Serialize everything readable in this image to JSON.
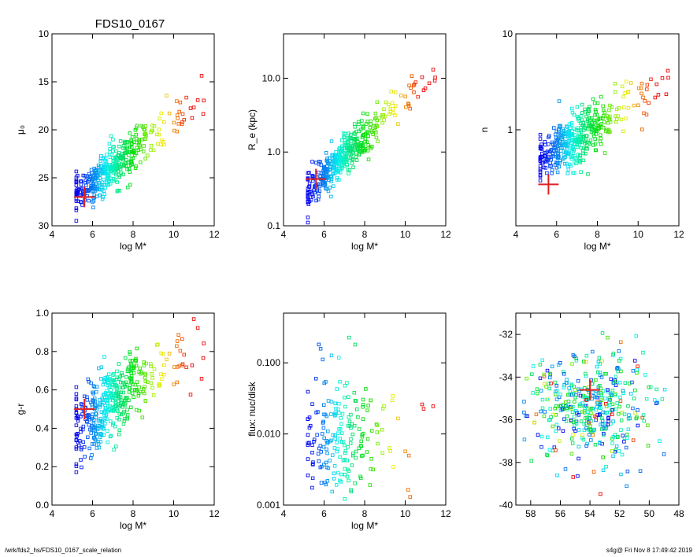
{
  "title": "FDS10_0167",
  "footer_left": "/wrk/fds2_hs/FDS10_0167_scale_relation",
  "footer_right": "s4g@  Fri Nov  8 17:49:42 2019",
  "colors": {
    "marker_main": "#e02020",
    "axis": "#000000"
  },
  "chart_data": [
    {
      "id": "mu0",
      "type": "scatter",
      "xlabel": "log M*",
      "ylabel": "μ₀",
      "xlim": [
        4,
        12
      ],
      "ylim": [
        30,
        10
      ],
      "xticks": [
        4,
        6,
        8,
        10,
        12
      ],
      "yticks": [
        10,
        15,
        20,
        25,
        30
      ],
      "ytick_labels": [
        "10",
        "15",
        "20",
        "25",
        "30"
      ],
      "highlight": {
        "x": 5.6,
        "y": 27.0
      }
    },
    {
      "id": "re",
      "type": "scatter",
      "xlabel": "log M*",
      "ylabel": "R_e (kpc)",
      "xlim": [
        4,
        12
      ],
      "ylim": [
        0.1,
        40
      ],
      "yscale": "log",
      "xticks": [
        4,
        6,
        8,
        10,
        12
      ],
      "yticks": [
        0.1,
        1.0,
        10.0
      ],
      "ytick_labels": [
        "0.1",
        "1.0",
        "10.0"
      ],
      "highlight": {
        "x": 5.6,
        "y": 0.43
      }
    },
    {
      "id": "n",
      "type": "scatter",
      "xlabel": "log M*",
      "ylabel": "n",
      "xlim": [
        4,
        12
      ],
      "ylim": [
        0.1,
        10
      ],
      "yscale": "log",
      "xticks": [
        4,
        6,
        8,
        10,
        12
      ],
      "yticks": [
        1,
        10
      ],
      "ytick_labels": [
        "1",
        "10"
      ],
      "highlight": {
        "x": 5.6,
        "y": 0.27
      }
    },
    {
      "id": "gr",
      "type": "scatter",
      "xlabel": "log M*",
      "ylabel": "g-r",
      "xlim": [
        4,
        12
      ],
      "ylim": [
        0.0,
        1.0
      ],
      "xticks": [
        4,
        6,
        8,
        10,
        12
      ],
      "yticks": [
        0.0,
        0.2,
        0.4,
        0.6,
        0.8,
        1.0
      ],
      "ytick_labels": [
        "0.0",
        "0.2",
        "0.4",
        "0.6",
        "0.8",
        "1.0"
      ],
      "highlight": {
        "x": 5.6,
        "y": 0.5
      }
    },
    {
      "id": "flux",
      "type": "scatter",
      "xlabel": "log M*",
      "ylabel": "flux: nuc/disk",
      "xlim": [
        4,
        12
      ],
      "ylim": [
        0.001,
        0.5
      ],
      "yscale": "log",
      "xticks": [
        4,
        6,
        8,
        10,
        12
      ],
      "yticks": [
        0.001,
        0.01,
        0.1
      ],
      "ytick_labels": [
        "0.001",
        "0.010",
        "0.100"
      ],
      "highlight": null
    },
    {
      "id": "sky",
      "type": "scatter",
      "xlabel": "",
      "ylabel": "",
      "xlim": [
        59,
        48
      ],
      "ylim": [
        -40,
        -31
      ],
      "xticks": [
        58,
        56,
        54,
        52,
        50,
        48
      ],
      "yticks": [
        -40,
        -38,
        -36,
        -34,
        -32
      ],
      "ytick_labels": [
        "-40",
        "-38",
        "-36",
        "-34",
        "-32"
      ],
      "highlight": {
        "x": 54.0,
        "y": -34.6
      }
    }
  ]
}
